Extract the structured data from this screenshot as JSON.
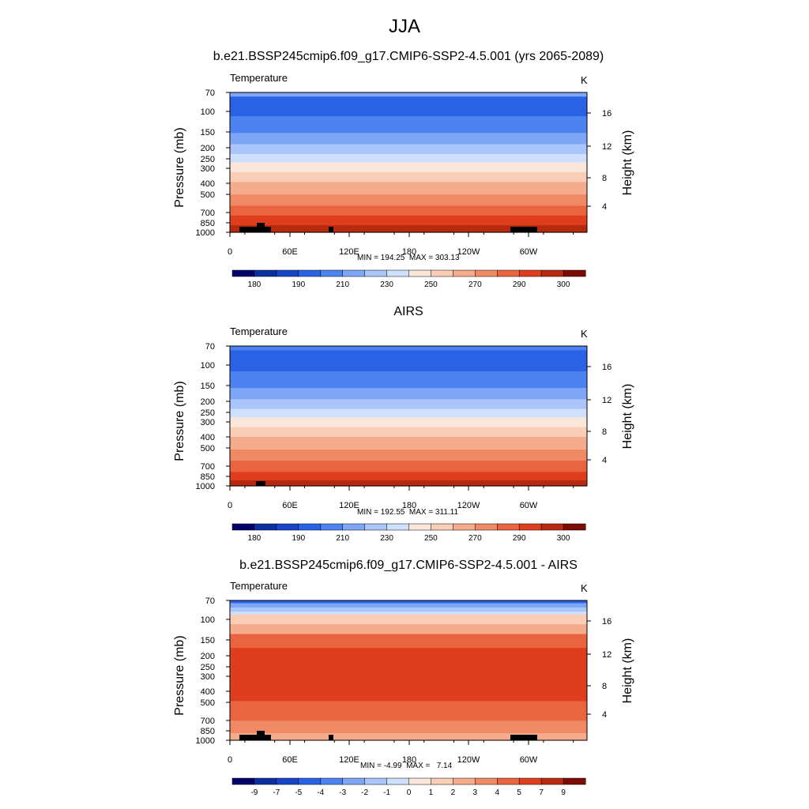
{
  "figure": {
    "title": "JJA"
  },
  "chart_data": [
    {
      "type": "heatmap",
      "title": "b.e21.BSSP245cmip6.f09_g17.CMIP6-SSP2-4.5.001 (yrs 2065-2089)",
      "field_label": "Temperature",
      "units": "K",
      "ylabel": "Pressure (mb)",
      "ylabel_right": "Height (km)",
      "x_ticks": [
        "0",
        "60E",
        "120E",
        "180",
        "120W",
        "60W"
      ],
      "y_ticks": [
        "70",
        "100",
        "150",
        "200",
        "250",
        "300",
        "400",
        "500",
        "700",
        "850",
        "1000"
      ],
      "y_right_ticks": [
        "16",
        "12",
        "8",
        "4"
      ],
      "stats": "MIN = 194.25  MAX = 303.13",
      "colorbar_labels": [
        "180",
        "190",
        "210",
        "230",
        "250",
        "270",
        "290",
        "300"
      ]
    },
    {
      "type": "heatmap",
      "title": "AIRS",
      "field_label": "Temperature",
      "units": "K",
      "ylabel": "Pressure (mb)",
      "ylabel_right": "Height (km)",
      "x_ticks": [
        "0",
        "60E",
        "120E",
        "180",
        "120W",
        "60W"
      ],
      "y_ticks": [
        "70",
        "100",
        "150",
        "200",
        "250",
        "300",
        "400",
        "500",
        "700",
        "850",
        "1000"
      ],
      "y_right_ticks": [
        "16",
        "12",
        "8",
        "4"
      ],
      "stats": "MIN = 192.55  MAX = 311.11",
      "colorbar_labels": [
        "180",
        "190",
        "210",
        "230",
        "250",
        "270",
        "290",
        "300"
      ]
    },
    {
      "type": "heatmap",
      "title": "b.e21.BSSP245cmip6.f09_g17.CMIP6-SSP2-4.5.001 - AIRS",
      "field_label": "Temperature",
      "units": "K",
      "ylabel": "Pressure (mb)",
      "ylabel_right": "Height (km)",
      "x_ticks": [
        "0",
        "60E",
        "120E",
        "180",
        "120W",
        "60W"
      ],
      "y_ticks": [
        "70",
        "100",
        "150",
        "200",
        "250",
        "300",
        "400",
        "500",
        "700",
        "850",
        "1000"
      ],
      "y_right_ticks": [
        "16",
        "12",
        "8",
        "4"
      ],
      "stats": "MIN = -4.99  MAX =   7.14",
      "colorbar_labels": [
        "-9",
        "-7",
        "-5",
        "-4",
        "-3",
        "-2",
        "-1",
        "0",
        "1",
        "2",
        "3",
        "4",
        "5",
        "7",
        "9"
      ]
    }
  ],
  "colors": {
    "colorbar": [
      "#00006a",
      "#0a2fa0",
      "#1745c8",
      "#2a62e6",
      "#4c83f0",
      "#7ea6f6",
      "#a9c5fa",
      "#cfe0fc",
      "#fbe7da",
      "#f9cdb6",
      "#f5ac8c",
      "#f08a64",
      "#ea6440",
      "#de3e1c",
      "#b72a10",
      "#7c0b00"
    ],
    "land": "#000000"
  }
}
